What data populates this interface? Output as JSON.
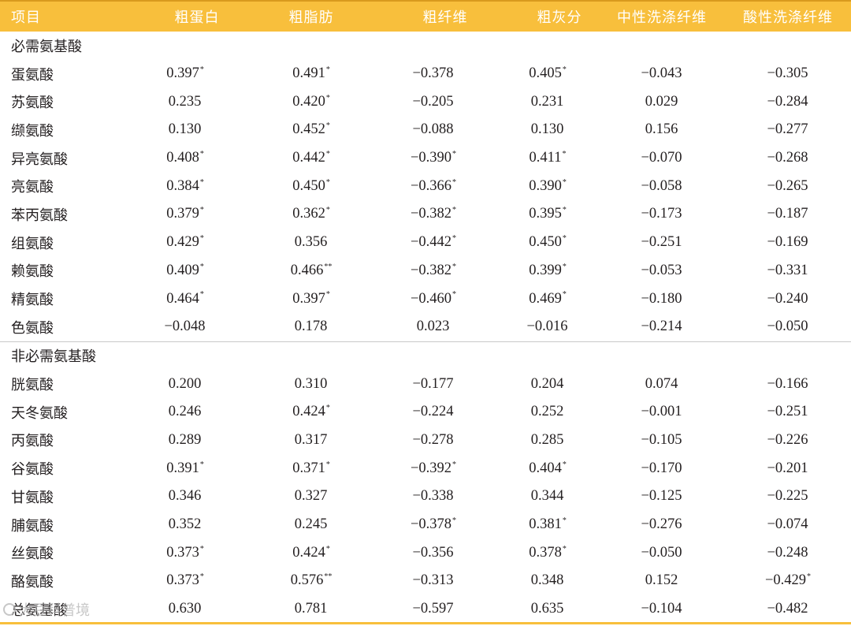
{
  "table": {
    "headers": [
      "项目",
      "粗蛋白",
      "粗脂肪",
      "粗纤维",
      "粗灰分",
      "中性洗涤纤维",
      "酸性洗涤纤维"
    ],
    "sections": [
      {
        "title": "必需氨基酸",
        "rows": [
          {
            "name": "蛋氨酸",
            "cells": [
              {
                "v": "0.397",
                "s": "*"
              },
              {
                "v": "0.491",
                "s": "*"
              },
              {
                "v": "−0.378",
                "s": ""
              },
              {
                "v": "0.405",
                "s": "*"
              },
              {
                "v": "−0.043",
                "s": ""
              },
              {
                "v": "−0.305",
                "s": ""
              }
            ]
          },
          {
            "name": "苏氨酸",
            "cells": [
              {
                "v": "0.235",
                "s": ""
              },
              {
                "v": "0.420",
                "s": "*"
              },
              {
                "v": "−0.205",
                "s": ""
              },
              {
                "v": "0.231",
                "s": ""
              },
              {
                "v": "0.029",
                "s": ""
              },
              {
                "v": "−0.284",
                "s": ""
              }
            ]
          },
          {
            "name": "缬氨酸",
            "cells": [
              {
                "v": "0.130",
                "s": ""
              },
              {
                "v": "0.452",
                "s": "*"
              },
              {
                "v": "−0.088",
                "s": ""
              },
              {
                "v": "0.130",
                "s": ""
              },
              {
                "v": "0.156",
                "s": ""
              },
              {
                "v": "−0.277",
                "s": ""
              }
            ]
          },
          {
            "name": "异亮氨酸",
            "cells": [
              {
                "v": "0.408",
                "s": "*"
              },
              {
                "v": "0.442",
                "s": "*"
              },
              {
                "v": "−0.390",
                "s": "*"
              },
              {
                "v": "0.411",
                "s": "*"
              },
              {
                "v": "−0.070",
                "s": ""
              },
              {
                "v": "−0.268",
                "s": ""
              }
            ]
          },
          {
            "name": "亮氨酸",
            "cells": [
              {
                "v": "0.384",
                "s": "*"
              },
              {
                "v": "0.450",
                "s": "*"
              },
              {
                "v": "−0.366",
                "s": "*"
              },
              {
                "v": "0.390",
                "s": "*"
              },
              {
                "v": "−0.058",
                "s": ""
              },
              {
                "v": "−0.265",
                "s": ""
              }
            ]
          },
          {
            "name": "苯丙氨酸",
            "cells": [
              {
                "v": "0.379",
                "s": "*"
              },
              {
                "v": "0.362",
                "s": "*"
              },
              {
                "v": "−0.382",
                "s": "*"
              },
              {
                "v": "0.395",
                "s": "*"
              },
              {
                "v": "−0.173",
                "s": ""
              },
              {
                "v": "−0.187",
                "s": ""
              }
            ]
          },
          {
            "name": "组氨酸",
            "cells": [
              {
                "v": "0.429",
                "s": "*"
              },
              {
                "v": "0.356",
                "s": ""
              },
              {
                "v": "−0.442",
                "s": "*"
              },
              {
                "v": "0.450",
                "s": "*"
              },
              {
                "v": "−0.251",
                "s": ""
              },
              {
                "v": "−0.169",
                "s": ""
              }
            ]
          },
          {
            "name": "赖氨酸",
            "cells": [
              {
                "v": "0.409",
                "s": "*"
              },
              {
                "v": "0.466",
                "s": "**"
              },
              {
                "v": "−0.382",
                "s": "*"
              },
              {
                "v": "0.399",
                "s": "*"
              },
              {
                "v": "−0.053",
                "s": ""
              },
              {
                "v": "−0.331",
                "s": ""
              }
            ]
          },
          {
            "name": "精氨酸",
            "cells": [
              {
                "v": "0.464",
                "s": "*"
              },
              {
                "v": "0.397",
                "s": "*"
              },
              {
                "v": "−0.460",
                "s": "*"
              },
              {
                "v": "0.469",
                "s": "*"
              },
              {
                "v": "−0.180",
                "s": ""
              },
              {
                "v": "−0.240",
                "s": ""
              }
            ]
          },
          {
            "name": "色氨酸",
            "cells": [
              {
                "v": "−0.048",
                "s": ""
              },
              {
                "v": "0.178",
                "s": ""
              },
              {
                "v": "0.023",
                "s": ""
              },
              {
                "v": "−0.016",
                "s": ""
              },
              {
                "v": "−0.214",
                "s": ""
              },
              {
                "v": "−0.050",
                "s": ""
              }
            ]
          }
        ]
      },
      {
        "title": "非必需氨基酸",
        "rows": [
          {
            "name": "胱氨酸",
            "cells": [
              {
                "v": "0.200",
                "s": ""
              },
              {
                "v": "0.310",
                "s": ""
              },
              {
                "v": "−0.177",
                "s": ""
              },
              {
                "v": "0.204",
                "s": ""
              },
              {
                "v": "0.074",
                "s": ""
              },
              {
                "v": "−0.166",
                "s": ""
              }
            ]
          },
          {
            "name": "天冬氨酸",
            "cells": [
              {
                "v": "0.246",
                "s": ""
              },
              {
                "v": "0.424",
                "s": "*"
              },
              {
                "v": "−0.224",
                "s": ""
              },
              {
                "v": "0.252",
                "s": ""
              },
              {
                "v": "−0.001",
                "s": ""
              },
              {
                "v": "−0.251",
                "s": ""
              }
            ]
          },
          {
            "name": "丙氨酸",
            "cells": [
              {
                "v": "0.289",
                "s": ""
              },
              {
                "v": "0.317",
                "s": ""
              },
              {
                "v": "−0.278",
                "s": ""
              },
              {
                "v": "0.285",
                "s": ""
              },
              {
                "v": "−0.105",
                "s": ""
              },
              {
                "v": "−0.226",
                "s": ""
              }
            ]
          },
          {
            "name": "谷氨酸",
            "cells": [
              {
                "v": "0.391",
                "s": "*"
              },
              {
                "v": "0.371",
                "s": "*"
              },
              {
                "v": "−0.392",
                "s": "*"
              },
              {
                "v": "0.404",
                "s": "*"
              },
              {
                "v": "−0.170",
                "s": ""
              },
              {
                "v": "−0.201",
                "s": ""
              }
            ]
          },
          {
            "name": "甘氨酸",
            "cells": [
              {
                "v": "0.346",
                "s": ""
              },
              {
                "v": "0.327",
                "s": ""
              },
              {
                "v": "−0.338",
                "s": ""
              },
              {
                "v": "0.344",
                "s": ""
              },
              {
                "v": "−0.125",
                "s": ""
              },
              {
                "v": "−0.225",
                "s": ""
              }
            ]
          },
          {
            "name": "脯氨酸",
            "cells": [
              {
                "v": "0.352",
                "s": ""
              },
              {
                "v": "0.245",
                "s": ""
              },
              {
                "v": "−0.378",
                "s": "*"
              },
              {
                "v": "0.381",
                "s": "*"
              },
              {
                "v": "−0.276",
                "s": ""
              },
              {
                "v": "−0.074",
                "s": ""
              }
            ]
          },
          {
            "name": "丝氨酸",
            "cells": [
              {
                "v": "0.373",
                "s": "*"
              },
              {
                "v": "0.424",
                "s": "*"
              },
              {
                "v": "−0.356",
                "s": ""
              },
              {
                "v": "0.378",
                "s": "*"
              },
              {
                "v": "−0.050",
                "s": ""
              },
              {
                "v": "−0.248",
                "s": ""
              }
            ]
          },
          {
            "name": "酪氨酸",
            "cells": [
              {
                "v": "0.373",
                "s": "*"
              },
              {
                "v": "0.576",
                "s": "**"
              },
              {
                "v": "−0.313",
                "s": ""
              },
              {
                "v": "0.348",
                "s": ""
              },
              {
                "v": "0.152",
                "s": ""
              },
              {
                "v": "−0.429",
                "s": "*"
              }
            ]
          },
          {
            "name": "总氨基酸",
            "cells": [
              {
                "v": "0.630",
                "s": ""
              },
              {
                "v": "0.781",
                "s": ""
              },
              {
                "v": "−0.597",
                "s": ""
              },
              {
                "v": "0.635",
                "s": ""
              },
              {
                "v": "−0.104",
                "s": ""
              },
              {
                "v": "−0.482",
                "s": ""
              }
            ]
          }
        ]
      }
    ]
  },
  "watermark": "大豆科普境",
  "colors": {
    "header_bg": "#f8bf3c",
    "header_text": "#ffffff",
    "rule": "#f8bf3c"
  }
}
